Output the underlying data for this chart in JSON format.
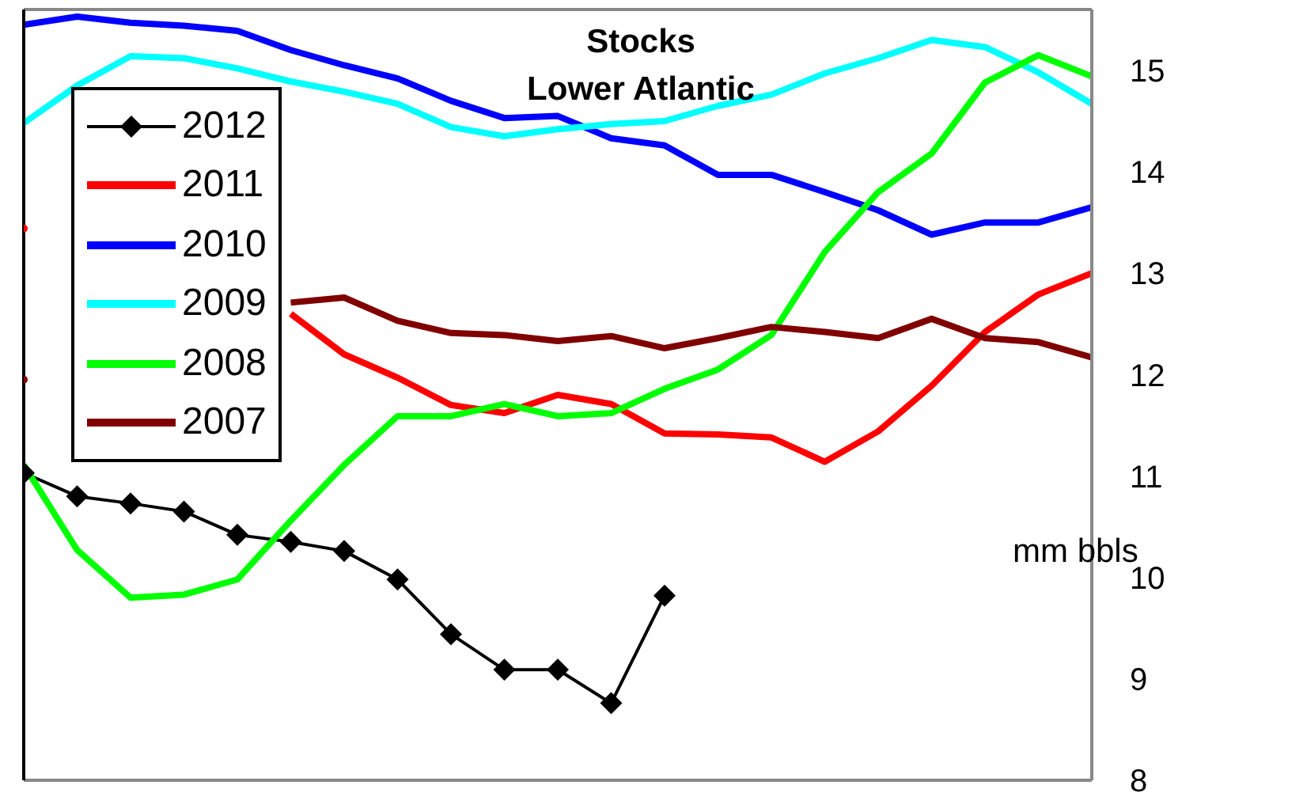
{
  "chart_data": {
    "type": "line",
    "title": "Stocks",
    "subtitle": "Lower Atlantic",
    "ylabel": "mm bbls",
    "categories": [
      null,
      null,
      null,
      null,
      null,
      null,
      null,
      null,
      null,
      null,
      null,
      null,
      null,
      null,
      null,
      null,
      null,
      null,
      null,
      null,
      null
    ],
    "series": [
      {
        "name": "2012",
        "color": "#000000",
        "marker": "diamond",
        "values": [
          11.03,
          10.8,
          10.73,
          10.65,
          10.42,
          10.35,
          10.26,
          9.98,
          9.44,
          9.09,
          9.09,
          8.76,
          9.82,
          null,
          null,
          null,
          null,
          null,
          null,
          null,
          null
        ]
      },
      {
        "name": "2011",
        "color": "#ff0000",
        "values": [
          13.44,
          null,
          null,
          null,
          null,
          12.6,
          12.2,
          11.97,
          11.7,
          11.62,
          11.8,
          11.71,
          11.42,
          11.41,
          11.38,
          11.14,
          11.44,
          11.89,
          12.42,
          12.79,
          13.0
        ]
      },
      {
        "name": "2010",
        "color": "#0000ff",
        "values": [
          15.45,
          15.53,
          15.47,
          15.44,
          15.39,
          15.2,
          15.05,
          14.92,
          14.7,
          14.53,
          14.55,
          14.33,
          14.26,
          13.97,
          13.97,
          13.8,
          13.62,
          13.38,
          13.5,
          13.5,
          13.65
        ]
      },
      {
        "name": "2009",
        "color": "#00ffff",
        "values": [
          14.48,
          14.85,
          15.14,
          15.12,
          15.02,
          14.89,
          14.79,
          14.67,
          14.44,
          14.35,
          14.42,
          14.47,
          14.5,
          14.65,
          14.76,
          14.97,
          15.12,
          15.3,
          15.23,
          14.98,
          14.67
        ]
      },
      {
        "name": "2008",
        "color": "#00ff00",
        "values": [
          11.11,
          10.27,
          9.8,
          9.83,
          9.98,
          10.56,
          11.11,
          11.59,
          11.59,
          11.71,
          11.59,
          11.62,
          11.86,
          12.05,
          12.39,
          13.21,
          13.8,
          14.18,
          14.88,
          15.15,
          14.94
        ]
      },
      {
        "name": "2007",
        "color": "#800000",
        "values": [
          11.95,
          null,
          null,
          null,
          null,
          12.71,
          12.76,
          12.53,
          12.41,
          12.39,
          12.33,
          12.38,
          12.26,
          12.36,
          12.47,
          12.42,
          12.36,
          12.55,
          12.36,
          12.32,
          12.17
        ]
      }
    ],
    "ylim": [
      8,
      15.6
    ],
    "yticks": [
      8,
      9,
      10,
      11,
      12,
      13,
      14,
      15
    ],
    "grid": false,
    "legend": "top left",
    "tick_labels": "y"
  }
}
